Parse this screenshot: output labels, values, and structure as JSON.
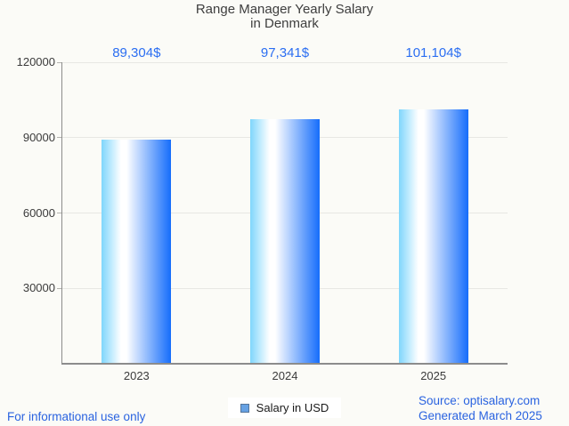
{
  "colors": {
    "background": "#fbfbf7",
    "title_text": "#3e3e3e",
    "axis_text": "#3b3b3b",
    "grid_line": "#e7e7e3",
    "tick_line": "#b3b3af",
    "axis_line": "#8c8c8c",
    "annotation_blue": "#2b6ef2",
    "footer_blue": "#2a63e0",
    "bar_light": "#7fd6fc",
    "bar_mid": "#ffffff",
    "bar_dark": "#156dfb",
    "legend_marker_fill": "#66a1e3",
    "legend_marker_border": "#55759a",
    "legend_text": "#1a1a1a",
    "legend_bg": "#ffffff"
  },
  "title": {
    "line1": "Range Manager Yearly Salary",
    "line2": "in Denmark"
  },
  "chart_data": {
    "type": "bar",
    "title": "Range Manager Yearly Salary in Denmark",
    "categories": [
      "2023",
      "2024",
      "2025"
    ],
    "series": [
      {
        "name": "Salary in USD",
        "values": [
          89304,
          97341,
          101104
        ]
      }
    ],
    "value_labels": [
      "89,304$",
      "97,341$",
      "101,104$"
    ],
    "xlabel": "",
    "ylabel": "",
    "ylim": [
      0,
      120000
    ],
    "yticks": [
      30000,
      60000,
      90000,
      120000
    ],
    "ytick_labels": [
      "30000",
      "60000",
      "90000",
      "120000"
    ],
    "grid": true,
    "legend_position": "bottom"
  },
  "footer": {
    "disclaimer": "For informational use only",
    "source_line1": "Source: optisalary.com",
    "source_line2": "Generated March 2025"
  }
}
